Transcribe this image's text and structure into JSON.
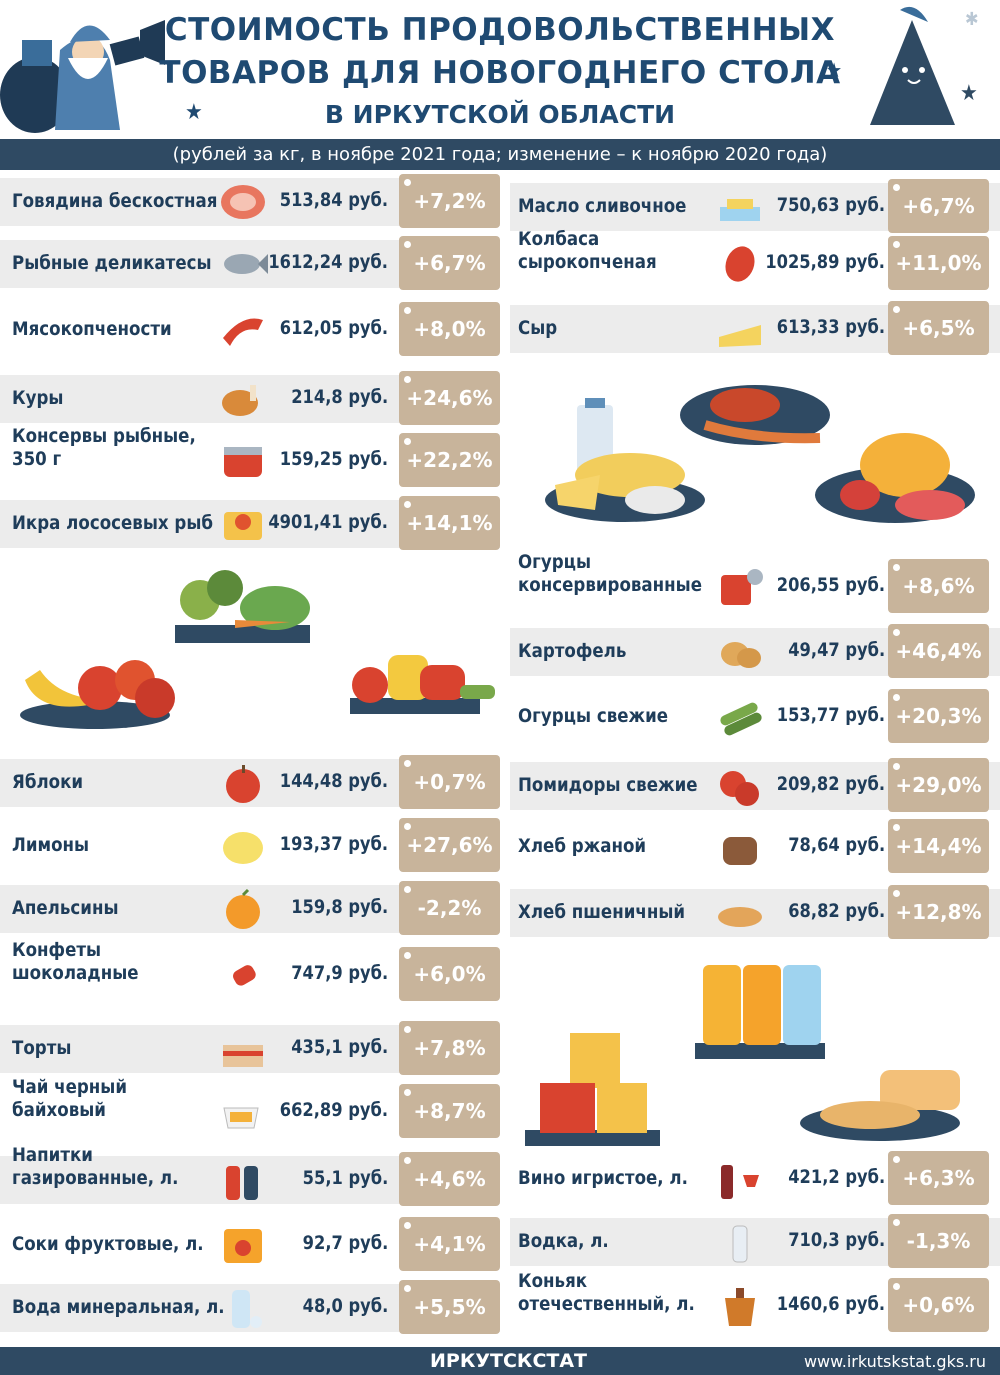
{
  "header": {
    "title_line1": "СТОИМОСТЬ ПРОДОВОЛЬСТВЕННЫХ",
    "title_line2": "ТОВАРОВ ДЛЯ НОВОГОДНЕГО СТОЛА",
    "title_line3": "В ИРКУТСКОЙ ОБЛАСТИ",
    "subtitle": "(рублей за кг, в ноябре 2021 года; изменение – к ноябрю 2020 года)"
  },
  "left": [
    {
      "name": "Говядина бескостная",
      "price": "513,84 руб.",
      "change": "+7,2%",
      "icon": "meat-icon"
    },
    {
      "name": "Рыбные деликатесы",
      "price": "1612,24 руб.",
      "change": "+6,7%",
      "icon": "fish-icon"
    },
    {
      "name": "Мясокопчености",
      "price": "612,05 руб.",
      "change": "+8,0%",
      "icon": "bacon-icon"
    },
    {
      "name": "Куры",
      "price": "214,8 руб.",
      "change": "+24,6%",
      "icon": "chicken-icon"
    },
    {
      "name": "Консервы рыбные,",
      "name2": "350 г",
      "price": "159,25 руб.",
      "change": "+22,2%",
      "icon": "canned-fish-icon"
    },
    {
      "name": "Икра лососевых рыб",
      "price": "4901,41 руб.",
      "change": "+14,1%",
      "icon": "caviar-icon"
    },
    {
      "name": "Яблоки",
      "price": "144,48 руб.",
      "change": "+0,7%",
      "icon": "apple-icon"
    },
    {
      "name": "Лимоны",
      "price": "193,37 руб.",
      "change": "+27,6%",
      "icon": "lemon-icon"
    },
    {
      "name": "Апельсины",
      "price": "159,8 руб.",
      "change": "-2,2%",
      "icon": "orange-icon"
    },
    {
      "name": "Конфеты",
      "name2": "шоколадные",
      "price": "747,9 руб.",
      "change": "+6,0%",
      "icon": "candy-icon"
    },
    {
      "name": "Торты",
      "price": "435,1 руб.",
      "change": "+7,8%",
      "icon": "cake-icon"
    },
    {
      "name": "Чай черный",
      "name2": "байховый",
      "price": "662,89 руб.",
      "change": "+8,7%",
      "icon": "tea-icon"
    },
    {
      "name": "Напитки",
      "name2": "газированные, л.",
      "price": "55,1 руб.",
      "change": "+4,6%",
      "icon": "soda-icon"
    },
    {
      "name": "Соки фруктовые, л.",
      "price": "92,7 руб.",
      "change": "+4,1%",
      "icon": "juice-icon"
    },
    {
      "name": "Вода минеральная, л.",
      "price": "48,0 руб.",
      "change": "+5,5%",
      "icon": "water-icon"
    }
  ],
  "right": [
    {
      "name": "Масло сливочное",
      "price": "750,63 руб.",
      "change": "+6,7%",
      "icon": "butter-icon"
    },
    {
      "name": "Колбаса",
      "name2": "сырокопченая",
      "price": "1025,89 руб.",
      "change": "+11,0%",
      "icon": "sausage-icon"
    },
    {
      "name": "Сыр",
      "price": "613,33 руб.",
      "change": "+6,5%",
      "icon": "cheese-icon"
    },
    {
      "name": "Огурцы",
      "name2": "консервированные",
      "price": "206,55 руб.",
      "change": "+8,6%",
      "icon": "pickles-icon"
    },
    {
      "name": "Картофель",
      "price": "49,47 руб.",
      "change": "+46,4%",
      "icon": "potato-icon"
    },
    {
      "name": "Огурцы свежие",
      "price": "153,77 руб.",
      "change": "+20,3%",
      "icon": "cucumber-icon"
    },
    {
      "name": "Помидоры свежие",
      "price": "209,82 руб.",
      "change": "+29,0%",
      "icon": "tomato-icon"
    },
    {
      "name": "Хлеб ржаной",
      "price": "78,64 руб.",
      "change": "+14,4%",
      "icon": "rye-bread-icon"
    },
    {
      "name": "Хлеб пшеничный",
      "price": "68,82 руб.",
      "change": "+12,8%",
      "icon": "wheat-bread-icon"
    },
    {
      "name": "Вино игристое, л.",
      "price": "421,2 руб.",
      "change": "+6,3%",
      "icon": "wine-icon"
    },
    {
      "name": "Водка, л.",
      "price": "710,3 руб.",
      "change": "-1,3%",
      "icon": "vodka-icon"
    },
    {
      "name": "Коньяк",
      "name2": "отечественный, л.",
      "price": "1460,6 руб.",
      "change": "+0,6%",
      "icon": "cognac-icon"
    }
  ],
  "footer": {
    "org": "ИРКУТСКСТАТ",
    "url": "www.irkutskstat.gks.ru"
  },
  "colors": {
    "navy": "#2f4a63",
    "badge": "#c8b49b",
    "title": "#1f4a72",
    "row": "#ececec"
  }
}
